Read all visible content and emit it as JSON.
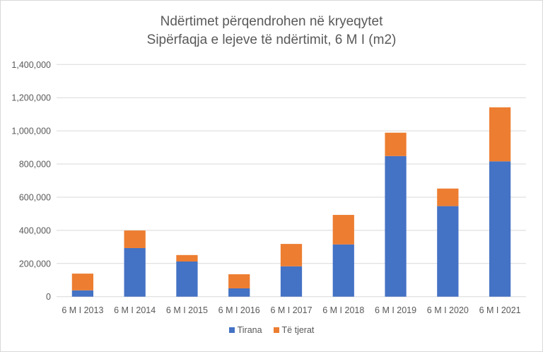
{
  "chart_data": {
    "type": "bar",
    "stacked": true,
    "title": "Ndërtimet përqendrohen në kryeqytet",
    "subtitle": "Sipërfaqja e lejeve të ndërtimit, 6 M I (m2)",
    "xlabel": "",
    "ylabel": "",
    "categories": [
      "6 M I 2013",
      "6 M I 2014",
      "6 M I 2015",
      "6 M I 2016",
      "6 M I 2017",
      "6 M I 2018",
      "6 M I 2019",
      "6 M I 2020",
      "6 M I 2021"
    ],
    "series": [
      {
        "name": "Tirana",
        "color": "#4472c4",
        "values": [
          38000,
          293000,
          212000,
          50000,
          183000,
          315000,
          848000,
          546000,
          816000
        ]
      },
      {
        "name": "Të tjerat",
        "color": "#ed7d31",
        "values": [
          101000,
          106000,
          39000,
          85000,
          135000,
          178000,
          141000,
          106000,
          326000
        ]
      }
    ],
    "ylim": [
      0,
      1400000
    ],
    "yticks": [
      0,
      200000,
      400000,
      600000,
      800000,
      1000000,
      1200000,
      1400000
    ],
    "ytick_labels": [
      "0",
      "200,000",
      "400,000",
      "600,000",
      "800,000",
      "1,000,000",
      "1,200,000",
      "1,400,000"
    ],
    "grid": true,
    "legend_position": "bottom"
  }
}
